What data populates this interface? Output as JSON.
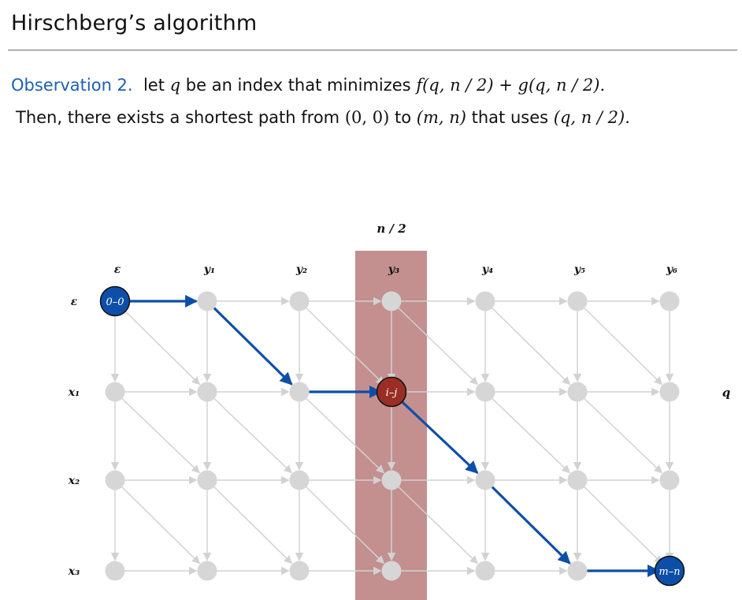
{
  "header": {
    "title": "Hirschberg’s algorithm"
  },
  "observation": {
    "label": "Observation 2.",
    "line1_pre": "let",
    "line1_var": "q",
    "line1_mid": "be an index that minimizes",
    "line1_expr": "f(q, n / 2) + g(q, n / 2).",
    "line2_pre": "Then, there exists a shortest path from",
    "line2_from": "(0, 0)",
    "line2_to_word": "to",
    "line2_to": "(m, n)",
    "line2_uses": "that uses",
    "line2_via": "(q, n / 2)."
  },
  "diagram": {
    "column_labels": [
      "ε",
      "y₁",
      "y₂",
      "y₃",
      "y₄",
      "y₅",
      "y₆"
    ],
    "row_labels": [
      "ε",
      "x₁",
      "x₂",
      "x₃"
    ],
    "highlight_label": "n / 2",
    "q_label": "q",
    "start_node_label": "0–0",
    "mid_node_label": "i–j",
    "end_node_label": "m–n",
    "colors": {
      "edge": "#d2d2d2",
      "node": "#d6d6d6",
      "path": "#0d4fa8",
      "highlight": "#b97b7b",
      "mid_node": "#9a2e24"
    }
  }
}
